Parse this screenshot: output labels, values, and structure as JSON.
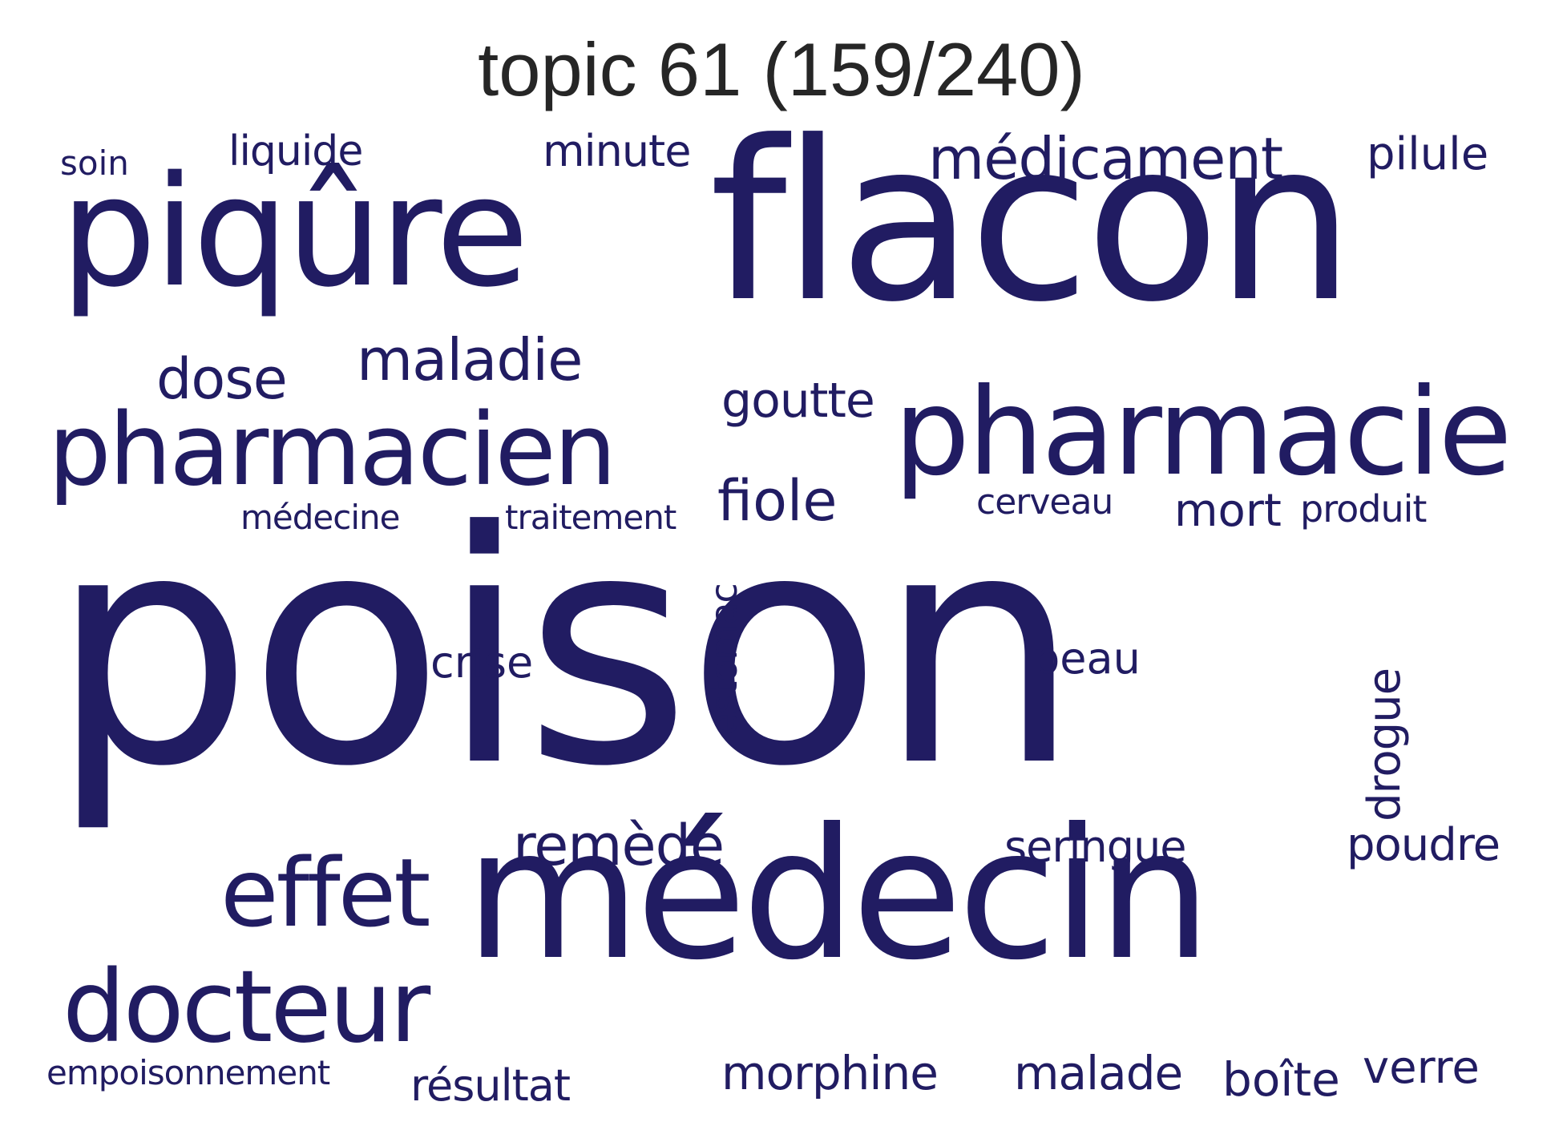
{
  "title": "topic 61 (159/240)",
  "word_color": "#211c62",
  "words": [
    {
      "text": "poison"
    },
    {
      "text": "flacon"
    },
    {
      "text": "médecin"
    },
    {
      "text": "piqûre"
    },
    {
      "text": "pharmacie"
    },
    {
      "text": "pharmacien"
    },
    {
      "text": "docteur"
    },
    {
      "text": "effet"
    },
    {
      "text": "médicament"
    },
    {
      "text": "maladie"
    },
    {
      "text": "remède"
    },
    {
      "text": "dose"
    },
    {
      "text": "fiole"
    },
    {
      "text": "goutte"
    },
    {
      "text": "minute"
    },
    {
      "text": "pilule"
    },
    {
      "text": "liquide"
    },
    {
      "text": "soin"
    },
    {
      "text": "médecine"
    },
    {
      "text": "traitement"
    },
    {
      "text": "cerveau"
    },
    {
      "text": "mort"
    },
    {
      "text": "produit"
    },
    {
      "text": "estomac"
    },
    {
      "text": "crise"
    },
    {
      "text": "peau"
    },
    {
      "text": "drogue"
    },
    {
      "text": "seringue"
    },
    {
      "text": "poudre"
    },
    {
      "text": "empoisonnement"
    },
    {
      "text": "résultat"
    },
    {
      "text": "morphine"
    },
    {
      "text": "malade"
    },
    {
      "text": "boîte"
    },
    {
      "text": "verre"
    }
  ]
}
